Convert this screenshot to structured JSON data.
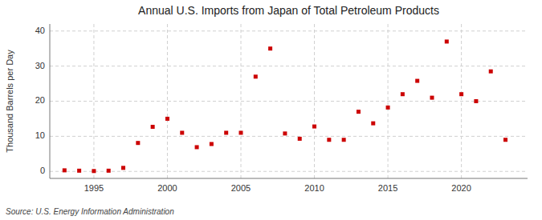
{
  "chart_data": {
    "type": "scatter",
    "title": "Annual U.S. Imports from Japan of Total Petroleum Products",
    "ylabel": "Thousand Barrels per Day",
    "source": "Source: U.S. Energy Information Administration",
    "x": [
      1993,
      1994,
      1995,
      1996,
      1997,
      1998,
      1999,
      2000,
      2001,
      2002,
      2003,
      2004,
      2005,
      2006,
      2007,
      2008,
      2009,
      2010,
      2011,
      2012,
      2013,
      2014,
      2015,
      2016,
      2017,
      2018,
      2019,
      2020,
      2021,
      2022,
      2023
    ],
    "values": [
      0.3,
      0.2,
      0.1,
      0.2,
      1.0,
      8.1,
      12.7,
      15.0,
      11.0,
      6.9,
      7.8,
      11.0,
      11.0,
      27.0,
      35.0,
      10.8,
      9.3,
      12.8,
      9.0,
      9.0,
      17.0,
      13.7,
      18.2,
      22.0,
      25.8,
      21.0,
      37.0,
      22.0,
      20.0,
      28.5,
      9.0
    ],
    "color": "#cc0000",
    "marker": "square",
    "xlim": [
      1992,
      2024.5
    ],
    "ylim": [
      -2,
      42
    ],
    "xticks": [
      1995,
      2000,
      2005,
      2010,
      2015,
      2020
    ],
    "yticks": [
      0,
      10,
      20,
      30,
      40
    ],
    "grid": true
  }
}
